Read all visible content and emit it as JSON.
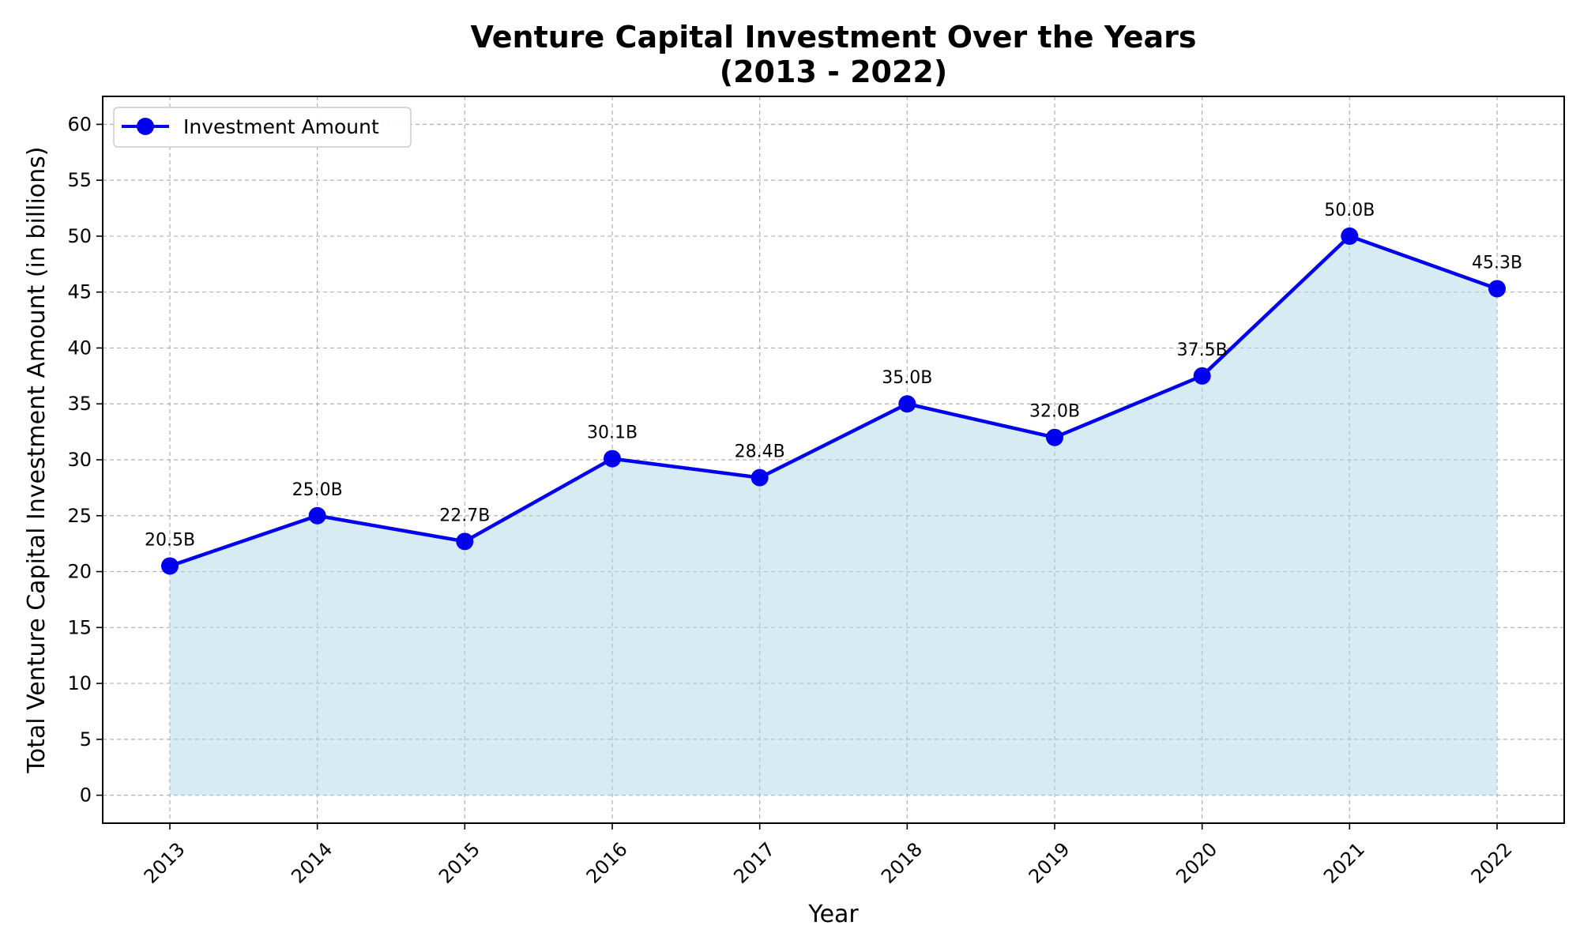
{
  "chart_data": {
    "type": "line",
    "title": "Venture Capital Investment Over the Years",
    "subtitle": "(2013 - 2022)",
    "xlabel": "Year",
    "ylabel": "Total Venture Capital Investment Amount (in billions)",
    "categories": [
      "2013",
      "2014",
      "2015",
      "2016",
      "2017",
      "2018",
      "2019",
      "2020",
      "2021",
      "2022"
    ],
    "series": [
      {
        "name": "Investment Amount",
        "values": [
          20.5,
          25.0,
          22.7,
          30.1,
          28.4,
          35.0,
          32.0,
          37.5,
          50.0,
          45.3
        ],
        "labels": [
          "20.5B",
          "25.0B",
          "22.7B",
          "30.1B",
          "28.4B",
          "35.0B",
          "32.0B",
          "37.5B",
          "50.0B",
          "45.3B"
        ],
        "color": "#0000ee",
        "fill_color": "#add8e6",
        "marker": "circle"
      }
    ],
    "yticks": [
      0,
      5,
      10,
      15,
      20,
      25,
      30,
      35,
      40,
      45,
      50,
      55,
      60
    ],
    "ylim": [
      -2.5,
      62.5
    ],
    "grid": true,
    "legend_position": "top-left",
    "area_fill": true
  }
}
